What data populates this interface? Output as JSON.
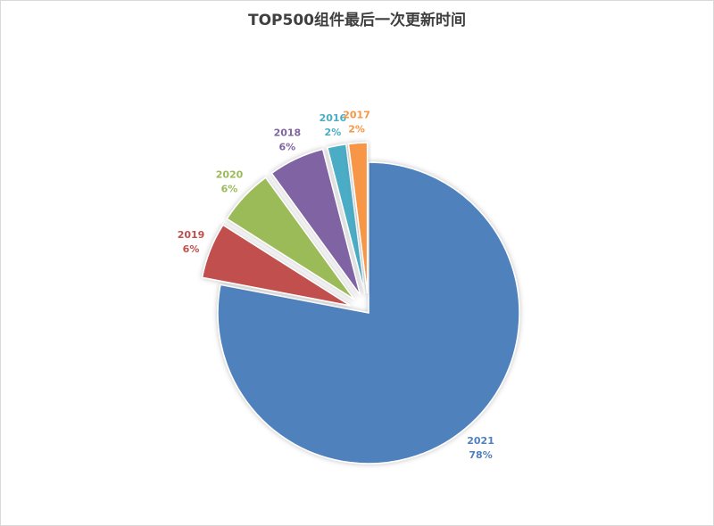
{
  "chart_data": {
    "type": "pie",
    "title": "TOP500组件最后一次更新时间",
    "categories": [
      "2021",
      "2019",
      "2020",
      "2018",
      "2016",
      "2017"
    ],
    "values": [
      78,
      6,
      6,
      6,
      2,
      2
    ],
    "value_labels": [
      "78%",
      "6%",
      "6%",
      "6%",
      "2%",
      "2%"
    ],
    "colors": [
      "#4f81bd",
      "#c0504d",
      "#9bbb59",
      "#8064a2",
      "#4bacc6",
      "#f79646"
    ]
  }
}
